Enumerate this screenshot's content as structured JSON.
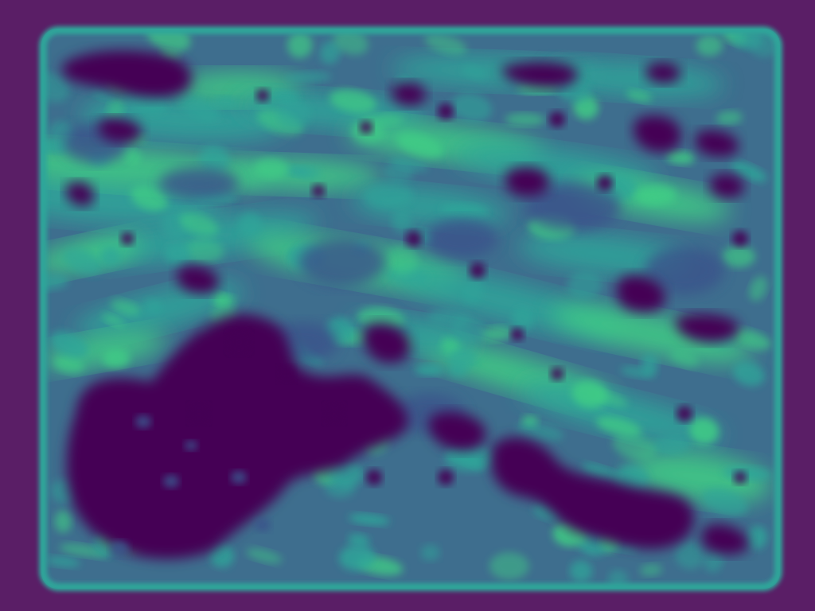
{
  "image": {
    "kind": "heatmap-texture",
    "colors": {
      "frame": "#5a1e66",
      "base": "#3e6e8e",
      "teal": "#2fa69a",
      "green": "#3fce85",
      "dark": "#440154",
      "mid": "#3b528b"
    }
  }
}
